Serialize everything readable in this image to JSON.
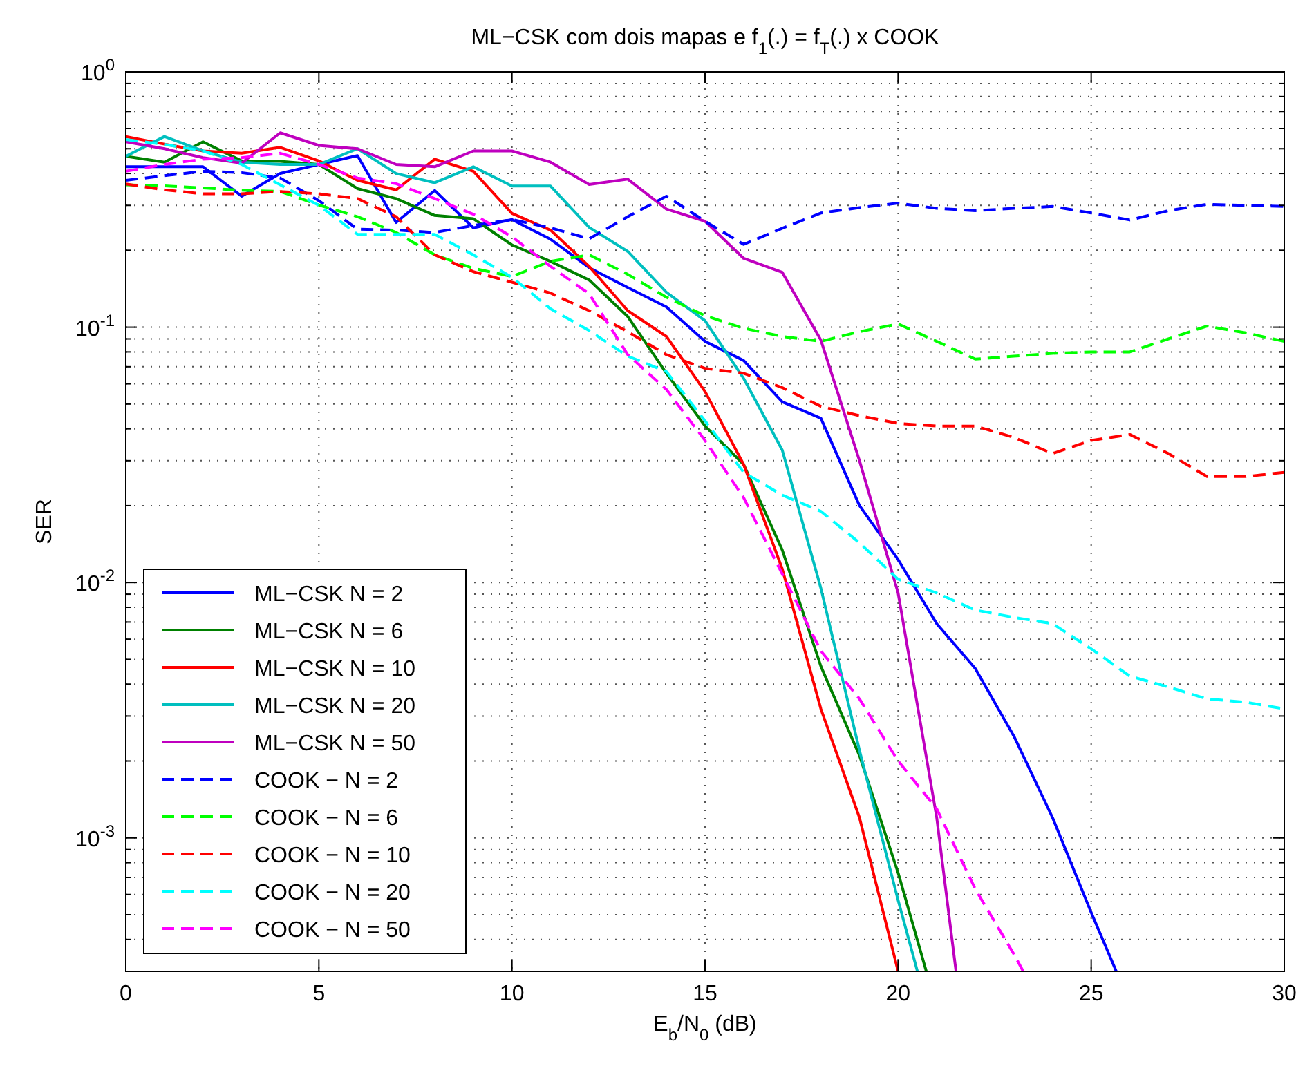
{
  "chart_data": {
    "type": "line",
    "title": "ML−CSK com dois mapas e f$_{1}$(.) = f$_{T}$(.) x COOK",
    "xlabel": "E$_{b}$/N$_{0}$ (dB)",
    "ylabel": "SER",
    "x": [
      0,
      1,
      2,
      3,
      4,
      5,
      6,
      7,
      8,
      9,
      10,
      11,
      12,
      13,
      14,
      15,
      16,
      17,
      18,
      19,
      20,
      21,
      22,
      23,
      24,
      25,
      26,
      27,
      28,
      29,
      30
    ],
    "series": [
      {
        "name": "ML−CSK N = 2",
        "color": "#0000ff",
        "line_style": "solid",
        "x": [
          0,
          1,
          2,
          3,
          4,
          5,
          6,
          7,
          8,
          9,
          10,
          11,
          12,
          13,
          14,
          15,
          16,
          17,
          18,
          19,
          20,
          21,
          22,
          23,
          24,
          25,
          25.65
        ],
        "values": [
          0.425,
          0.425,
          0.425,
          0.326,
          0.4,
          0.434,
          0.47,
          0.257,
          0.343,
          0.245,
          0.264,
          0.221,
          0.171,
          0.143,
          0.12,
          0.088,
          0.074,
          0.051,
          0.044,
          0.02,
          0.0123,
          0.0069,
          0.0046,
          0.0025,
          0.0012,
          0.00051,
          0.0003
        ]
      },
      {
        "name": "ML−CSK N = 6",
        "color": "#008000",
        "line_style": "solid",
        "x": [
          0,
          1,
          2,
          3,
          4,
          5,
          6,
          7,
          8,
          9,
          10,
          11,
          12,
          13,
          14,
          15,
          16,
          17,
          18,
          19,
          20,
          20.73
        ],
        "values": [
          0.467,
          0.443,
          0.532,
          0.448,
          0.446,
          0.434,
          0.349,
          0.319,
          0.274,
          0.266,
          0.21,
          0.181,
          0.153,
          0.11,
          0.066,
          0.041,
          0.029,
          0.0134,
          0.0047,
          0.0021,
          0.00073,
          0.0003
        ]
      },
      {
        "name": "ML−CSK N = 10",
        "color": "#ff0000",
        "line_style": "solid",
        "x": [
          0,
          1,
          2,
          3,
          4,
          5,
          6,
          7,
          8,
          9,
          10,
          11,
          12,
          13,
          14,
          15,
          16,
          17,
          18,
          19,
          20
        ],
        "values": [
          0.558,
          0.521,
          0.49,
          0.48,
          0.506,
          0.448,
          0.376,
          0.345,
          0.455,
          0.408,
          0.279,
          0.24,
          0.173,
          0.116,
          0.092,
          0.056,
          0.029,
          0.0113,
          0.0032,
          0.0012,
          0.0003
        ]
      },
      {
        "name": "ML−CSK N = 20",
        "color": "#00bfbf",
        "line_style": "solid",
        "x": [
          0,
          1,
          2,
          3,
          4,
          5,
          6,
          7,
          8,
          9,
          10,
          11,
          12,
          13,
          14,
          15,
          16,
          17,
          18,
          19,
          20,
          20.5
        ],
        "values": [
          0.467,
          0.558,
          0.49,
          0.443,
          0.434,
          0.434,
          0.5,
          0.4,
          0.368,
          0.425,
          0.357,
          0.357,
          0.246,
          0.198,
          0.137,
          0.106,
          0.063,
          0.033,
          0.0095,
          0.0022,
          0.00057,
          0.0003
        ]
      },
      {
        "name": "ML−CSK N = 50",
        "color": "#bf00bf",
        "line_style": "solid",
        "x": [
          0,
          1,
          2,
          3,
          4,
          5,
          6,
          7,
          8,
          9,
          10,
          11,
          12,
          13,
          14,
          15,
          16,
          17,
          18,
          19,
          20,
          21,
          21.5
        ],
        "values": [
          0.532,
          0.5,
          0.461,
          0.439,
          0.577,
          0.515,
          0.5,
          0.434,
          0.425,
          0.49,
          0.49,
          0.443,
          0.362,
          0.38,
          0.29,
          0.26,
          0.186,
          0.164,
          0.089,
          0.03,
          0.0091,
          0.0012,
          0.0003
        ]
      },
      {
        "name": "COOK − N = 2",
        "color": "#0000ff",
        "line_style": "dashed",
        "values": [
          0.376,
          0.392,
          0.408,
          0.403,
          0.384,
          0.313,
          0.242,
          0.24,
          0.235,
          0.25,
          0.264,
          0.245,
          0.222,
          0.271,
          0.326,
          0.26,
          0.211,
          0.244,
          0.28,
          0.294,
          0.306,
          0.292,
          0.286,
          0.292,
          0.297,
          0.28,
          0.263,
          0.286,
          0.303,
          0.3,
          0.297
        ]
      },
      {
        "name": "COOK − N = 6",
        "color": "#00ff00",
        "line_style": "dashed",
        "values": [
          0.361,
          0.358,
          0.351,
          0.344,
          0.34,
          0.301,
          0.271,
          0.235,
          0.192,
          0.17,
          0.158,
          0.181,
          0.192,
          0.161,
          0.131,
          0.111,
          0.099,
          0.092,
          0.088,
          0.096,
          0.103,
          0.088,
          0.075,
          0.077,
          0.079,
          0.08,
          0.08,
          0.09,
          0.101,
          0.095,
          0.088
        ]
      },
      {
        "name": "COOK − N = 10",
        "color": "#ff0000",
        "line_style": "dashed",
        "values": [
          0.364,
          0.345,
          0.333,
          0.333,
          0.34,
          0.333,
          0.319,
          0.271,
          0.192,
          0.165,
          0.15,
          0.136,
          0.116,
          0.096,
          0.078,
          0.069,
          0.066,
          0.058,
          0.049,
          0.045,
          0.042,
          0.041,
          0.041,
          0.037,
          0.032,
          0.036,
          0.038,
          0.032,
          0.026,
          0.026,
          0.027
        ]
      },
      {
        "name": "COOK − N = 20",
        "color": "#00ffff",
        "line_style": "dashed",
        "values": [
          0.543,
          0.52,
          0.49,
          0.434,
          0.361,
          0.3,
          0.231,
          0.231,
          0.231,
          0.192,
          0.157,
          0.118,
          0.097,
          0.077,
          0.067,
          0.043,
          0.027,
          0.022,
          0.019,
          0.0143,
          0.0103,
          0.0091,
          0.0078,
          0.0073,
          0.0069,
          0.0055,
          0.0043,
          0.0039,
          0.0035,
          0.0034,
          0.0032
        ]
      },
      {
        "name": "COOK − N = 50",
        "color": "#ff00ff",
        "line_style": "dashed",
        "x": [
          0,
          1,
          2,
          3,
          4,
          5,
          6,
          7,
          8,
          9,
          10,
          11,
          12,
          13,
          14,
          15,
          16,
          17,
          18,
          19,
          20,
          21,
          22,
          23,
          23.24
        ],
        "values": [
          0.408,
          0.434,
          0.455,
          0.461,
          0.48,
          0.434,
          0.384,
          0.365,
          0.319,
          0.277,
          0.226,
          0.173,
          0.135,
          0.078,
          0.057,
          0.036,
          0.0215,
          0.0108,
          0.0054,
          0.0035,
          0.002,
          0.0013,
          0.00063,
          0.00035,
          0.0003
        ]
      }
    ],
    "log": "y",
    "xlim": [
      0,
      30
    ],
    "xticks": [
      0,
      5,
      10,
      15,
      20,
      25,
      30
    ],
    "ylim": [
      0.0003,
      1
    ],
    "yticks": [
      {
        "value": 0.0003,
        "label": null
      },
      {
        "value": 0.0004,
        "label": null
      },
      {
        "value": 0.0005,
        "label": null
      },
      {
        "value": 0.0006,
        "label": null
      },
      {
        "value": 0.0007,
        "label": null
      },
      {
        "value": 0.0008,
        "label": null
      },
      {
        "value": 0.0009,
        "label": null
      },
      {
        "value": 0.001,
        "label": "10$^{-3}$"
      },
      {
        "value": 0.002,
        "label": null
      },
      {
        "value": 0.003,
        "label": null
      },
      {
        "value": 0.004,
        "label": null
      },
      {
        "value": 0.005,
        "label": null
      },
      {
        "value": 0.006,
        "label": null
      },
      {
        "value": 0.007,
        "label": null
      },
      {
        "value": 0.008,
        "label": null
      },
      {
        "value": 0.009,
        "label": null
      },
      {
        "value": 0.01,
        "label": "10$^{-2}$"
      },
      {
        "value": 0.02,
        "label": null
      },
      {
        "value": 0.03,
        "label": null
      },
      {
        "value": 0.04,
        "label": null
      },
      {
        "value": 0.05,
        "label": null
      },
      {
        "value": 0.06,
        "label": null
      },
      {
        "value": 0.07,
        "label": null
      },
      {
        "value": 0.08,
        "label": null
      },
      {
        "value": 0.09,
        "label": null
      },
      {
        "value": 0.1,
        "label": "10$^{-1}$"
      },
      {
        "value": 0.2,
        "label": null
      },
      {
        "value": 0.3,
        "label": null
      },
      {
        "value": 0.4,
        "label": null
      },
      {
        "value": 0.5,
        "label": null
      },
      {
        "value": 0.6,
        "label": null
      },
      {
        "value": 0.7,
        "label": null
      },
      {
        "value": 0.8,
        "label": null
      },
      {
        "value": 0.9,
        "label": null
      },
      {
        "value": 1,
        "label": "10$^{0}$"
      }
    ],
    "grid": true,
    "legend": "bottom left"
  }
}
